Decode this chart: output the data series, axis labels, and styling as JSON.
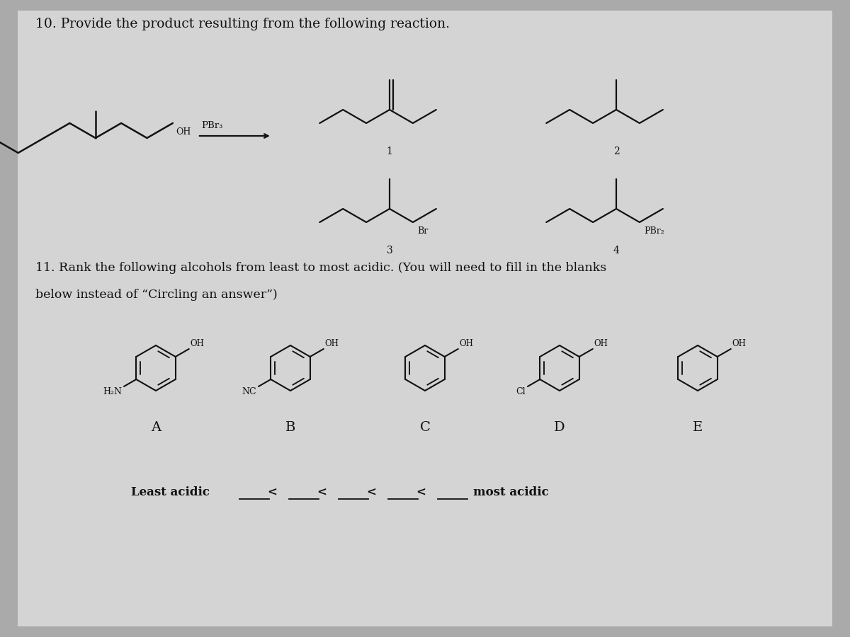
{
  "background_color": "#aaaaaa",
  "paper_color": "#d4d4d4",
  "text_color": "#111111",
  "title_q10": "10. Provide the product resulting from the following reaction.",
  "title_q11_line1": "11. Rank the following alcohols from least to most acidic. (You will need to fill in the blanks",
  "title_q11_line2": "below instead of “Circling an answer”)",
  "least_acidic_label": "Least acidic",
  "most_acidic_label": "most acidic",
  "alcohol_labels": [
    "A",
    "B",
    "C",
    "D",
    "E"
  ],
  "alcohol_substituents": [
    "H₂N",
    "NC",
    "",
    "Cl",
    ""
  ],
  "figsize": [
    12,
    9
  ],
  "dpi": 100
}
